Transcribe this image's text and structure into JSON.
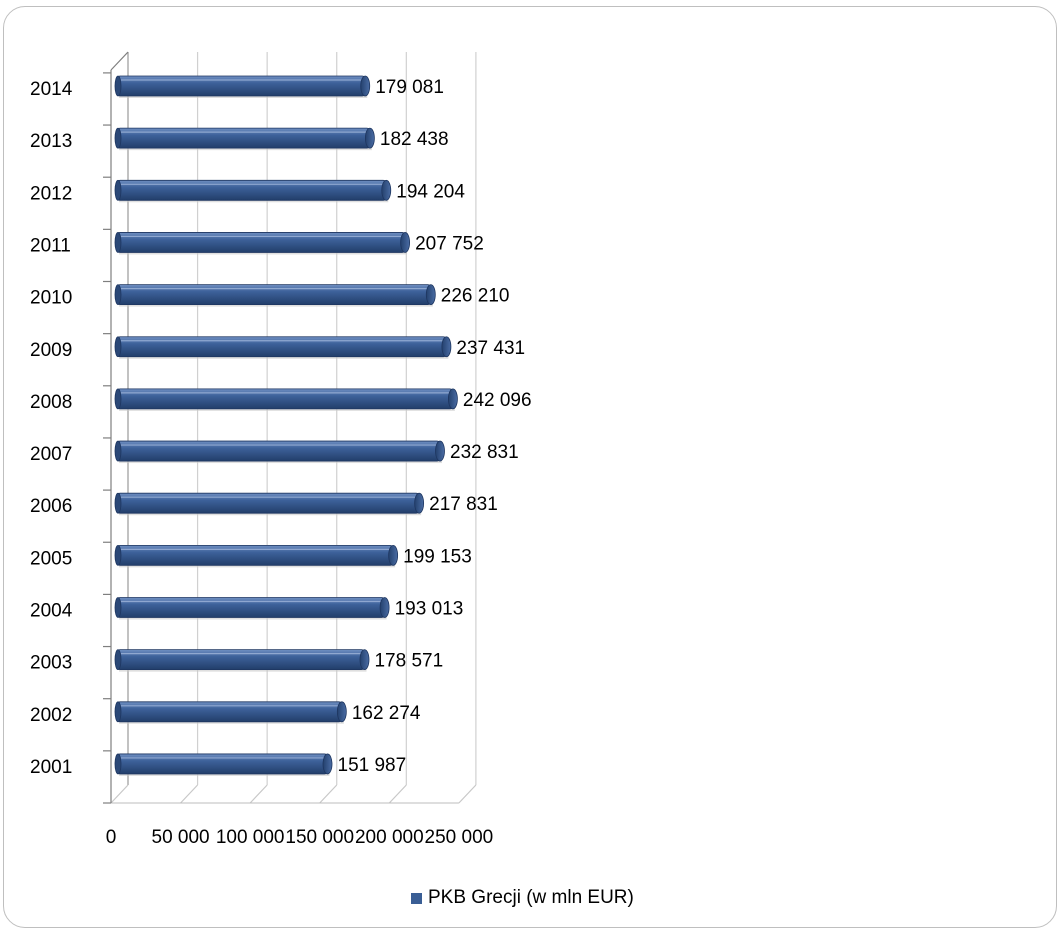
{
  "chart_data": {
    "type": "bar",
    "orientation": "horizontal",
    "categories": [
      "2001",
      "2002",
      "2003",
      "2004",
      "2005",
      "2006",
      "2007",
      "2008",
      "2009",
      "2010",
      "2011",
      "2012",
      "2013",
      "2014"
    ],
    "series": [
      {
        "name": "PKB Grecji (w mln EUR)",
        "color": "#3a5e95",
        "values": [
          151987,
          162274,
          178571,
          193013,
          199153,
          217831,
          232831,
          242096,
          237431,
          226210,
          207752,
          194204,
          182438,
          179081
        ],
        "labels": [
          "151 987",
          "162 274",
          "178 571",
          "193 013",
          "199 153",
          "217 831",
          "232 831",
          "242 096",
          "237 431",
          "226 210",
          "207 752",
          "194 204",
          "182 438",
          "179 081"
        ]
      }
    ],
    "x_ticks": [
      0,
      50000,
      100000,
      150000,
      200000,
      250000
    ],
    "x_tick_labels": [
      "0",
      "50 000",
      "100 000",
      "150 000",
      "200 000",
      "250 000"
    ],
    "xlim": [
      0,
      250000
    ],
    "grid": "vertical",
    "legend_position": "bottom",
    "title": "",
    "xlabel": "",
    "ylabel": ""
  },
  "legend": {
    "label": "PKB Grecji (w mln EUR)",
    "color": "#3a5e95"
  }
}
